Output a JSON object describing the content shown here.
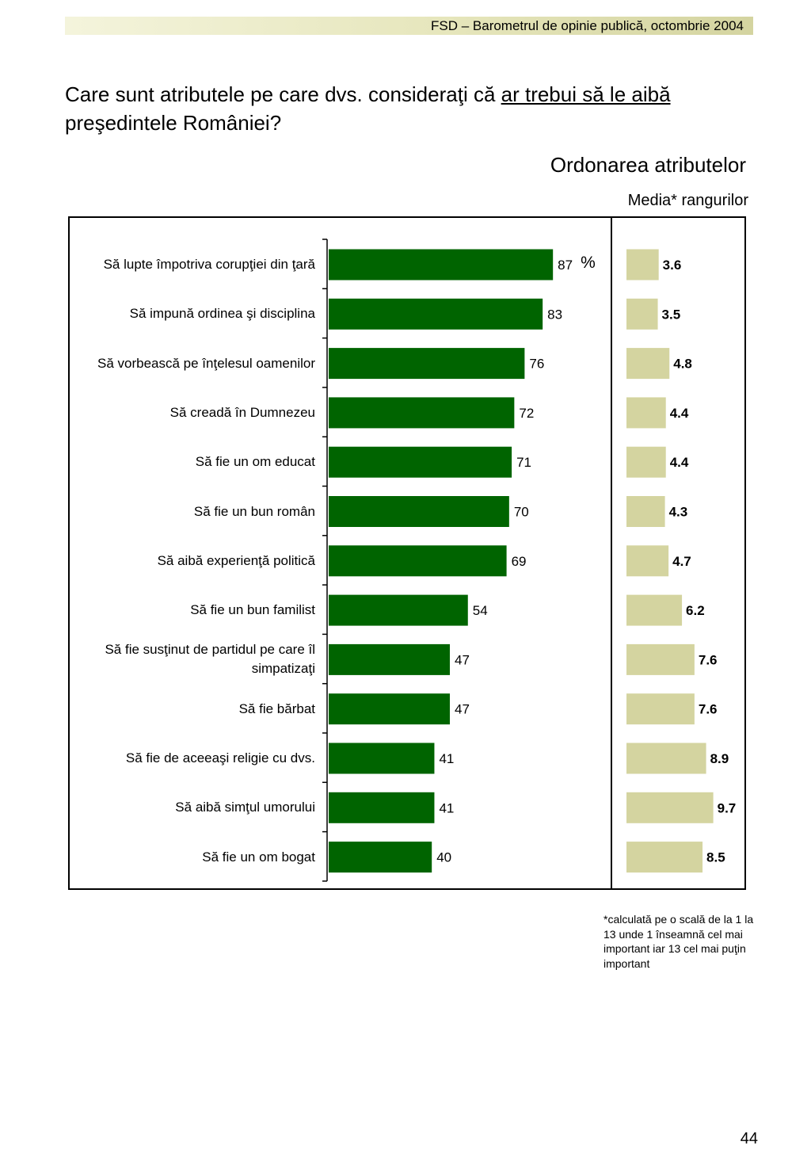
{
  "header": {
    "text": "FSD  –  Barometrul de opinie publică, octombrie 2004"
  },
  "question": {
    "part1": "Care sunt atributele pe care dvs. consideraţi că ",
    "underlined": "ar trebui să le aibă",
    "part2": " preşedintele României?"
  },
  "subtitle": "Ordonarea atributelor",
  "subtitle2": "Media* rangurilor",
  "chart_data": [
    {
      "type": "bar",
      "orientation": "horizontal",
      "unit_label": "%",
      "categories": [
        "Să lupte împotriva corupţiei din ţară",
        "Să impună ordinea şi disciplina",
        "Să vorbească pe înţelesul oamenilor",
        "Să creadă în Dumnezeu",
        "Să fie un om educat",
        "Să fie un bun român",
        "Să aibă experienţă politică",
        "Să fie un bun familist",
        "Să fie susţinut de partidul pe care îl simpatizaţi",
        "Să fie bărbat",
        "Să fie de aceeaşi religie cu dvs.",
        "Să aibă simţul umorului",
        "Să fie un om bogat"
      ],
      "values": [
        87,
        83,
        76,
        72,
        71,
        70,
        69,
        54,
        47,
        47,
        41,
        41,
        40
      ],
      "value_labels": [
        "87",
        "83",
        "76",
        "72",
        "71",
        "70",
        "69",
        "54",
        "47",
        "47",
        "41",
        "41",
        "40"
      ],
      "color": "#006400"
    },
    {
      "type": "bar",
      "orientation": "horizontal",
      "values": [
        3.6,
        3.5,
        4.8,
        4.4,
        4.4,
        4.3,
        4.7,
        6.2,
        7.6,
        7.6,
        8.9,
        9.7,
        8.5
      ],
      "value_labels": [
        "3.6",
        "3.5",
        "4.8",
        "4.4",
        "4.4",
        "4.3",
        "4.7",
        "6.2",
        "7.6",
        "7.6",
        "8.9",
        "9.7",
        "8.5"
      ],
      "color": "#d4d4a0"
    }
  ],
  "footnote": "*calculată pe o scală de la 1 la 13 unde 1 înseamnă cel mai important iar 13 cel mai puţin important",
  "page_number": "44"
}
